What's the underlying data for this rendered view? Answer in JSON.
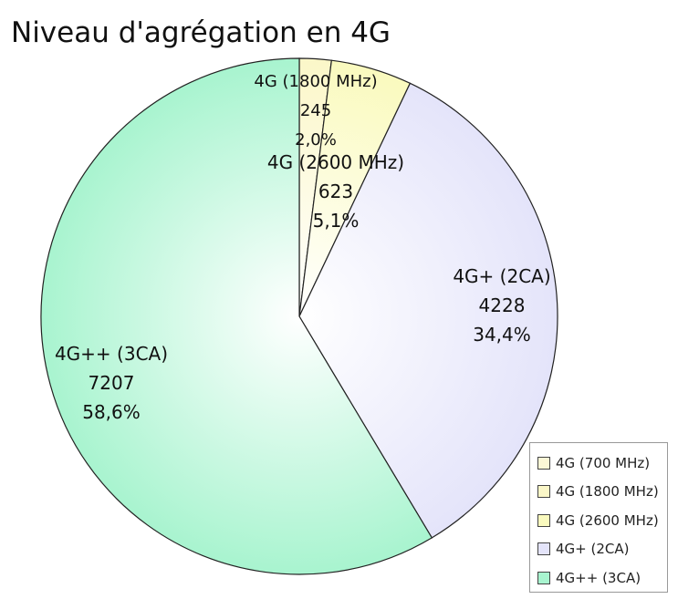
{
  "chart_data": {
    "type": "pie",
    "title": "Niveau d'agrégation en 4G",
    "labels": [
      "4G (700 MHz)",
      "4G (1800 MHz)",
      "4G (2600 MHz)",
      "4G+ (2CA)",
      "4G++ (3CA)"
    ],
    "values": [
      0,
      245,
      623,
      4228,
      7207
    ],
    "percent_labels": [
      "",
      "2,0%",
      "5,1%",
      "34,4%",
      "58,6%"
    ],
    "colors": [
      "#fbf7d6",
      "#fbf7c8",
      "#fafabe",
      "#e4e4fa",
      "#a8f4cf"
    ],
    "legend_position": "bottom-right",
    "start_angle": "top",
    "direction": "clockwise"
  }
}
